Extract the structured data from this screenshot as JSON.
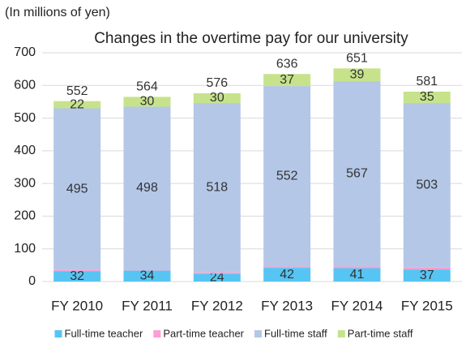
{
  "unit_label": "(In millions of yen)",
  "chart_data": {
    "type": "stacked_bar",
    "title": "Changes in the overtime pay for our university",
    "categories": [
      "FY 2010",
      "FY 2011",
      "FY 2012",
      "FY 2013",
      "FY 2014",
      "FY 2015"
    ],
    "series": [
      {
        "name": "Full-time teacher",
        "color": "#56c5f3",
        "values": [
          32,
          34,
          24,
          42,
          41,
          37
        ]
      },
      {
        "name": "Part-time teacher",
        "color": "#ff9ed2",
        "values": [
          3,
          3,
          4,
          4,
          5,
          6
        ]
      },
      {
        "name": "Full-time staff",
        "color": "#b4c7e7",
        "values": [
          495,
          498,
          518,
          552,
          567,
          503
        ]
      },
      {
        "name": "Part-time staff",
        "color": "#c6e38c",
        "values": [
          22,
          30,
          30,
          37,
          39,
          35
        ]
      }
    ],
    "totals": [
      552,
      564,
      576,
      636,
      651,
      581
    ],
    "ylim": [
      0,
      700
    ],
    "yticks": [
      0,
      100,
      200,
      300,
      400,
      500,
      600,
      700
    ],
    "grid": true
  }
}
